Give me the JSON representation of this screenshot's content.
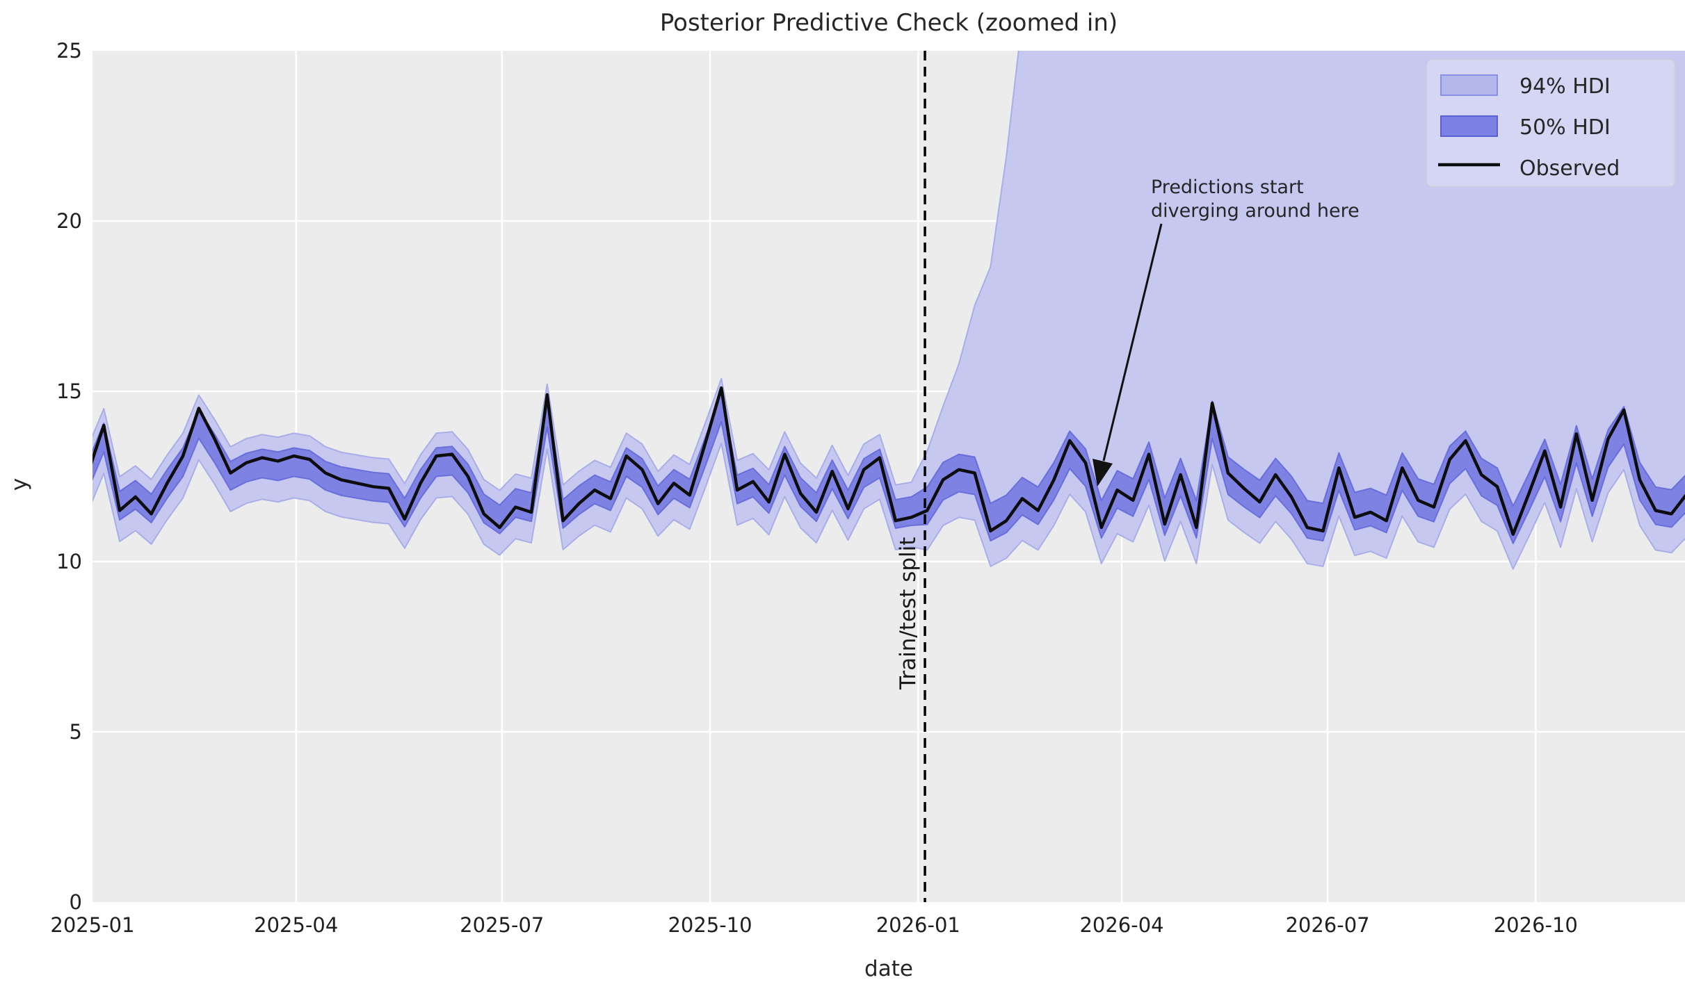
{
  "figure": {
    "title": "Posterior Predictive Check (zoomed in)"
  },
  "legend": {
    "items": [
      {
        "label": "94% HDI",
        "type": "patch-light"
      },
      {
        "label": "50% HDI",
        "type": "patch-dark"
      },
      {
        "label": "Observed",
        "type": "line"
      }
    ]
  },
  "annotation": {
    "line1": "Predictions start",
    "line2": "diverging around here"
  },
  "split_label": "Train/test split",
  "colors": {
    "axes_bg": "#ececec",
    "grid": "#ffffff",
    "hdi94_fill": "#c6c8ef",
    "hdi94_edge": "#a9aee9",
    "hdi50_fill": "#7e83e3",
    "hdi50_edge": "#6066d8",
    "observed": "#0d0d0d",
    "split_line": "#000000",
    "swatch94_fill": "#b3b7eb",
    "swatch94_edge": "#8a90e4",
    "swatch50_fill": "#7b80e2",
    "swatch50_edge": "#5a61d6",
    "legend_frame_fill": "rgba(255,255,255,0.25)",
    "legend_frame_edge": "rgba(210,210,215,0.8)"
  },
  "chart_data": {
    "type": "line",
    "title": "Posterior Predictive Check (zoomed in)",
    "xlabel": "date",
    "ylabel": "y",
    "ylim": [
      0,
      25
    ],
    "y_ticks": [
      0,
      5,
      10,
      15,
      20,
      25
    ],
    "xlim_days": [
      0,
      704
    ],
    "x_ticks": [
      {
        "day": 0,
        "label": "2025-01"
      },
      {
        "day": 90,
        "label": "2025-04"
      },
      {
        "day": 181,
        "label": "2025-07"
      },
      {
        "day": 273,
        "label": "2025-10"
      },
      {
        "day": 365,
        "label": "2026-01"
      },
      {
        "day": 455,
        "label": "2026-04"
      },
      {
        "day": 546,
        "label": "2026-07"
      },
      {
        "day": 638,
        "label": "2026-10"
      }
    ],
    "grid": true,
    "legend_position": "upper right",
    "split_day": 368,
    "split_week_index": 53,
    "observed": {
      "start_day": -2,
      "step_days": 7,
      "values": [
        12.6,
        14.0,
        11.5,
        11.9,
        11.4,
        12.3,
        13.1,
        14.5,
        13.6,
        12.6,
        12.9,
        13.05,
        12.95,
        13.1,
        13.0,
        12.6,
        12.4,
        12.3,
        12.2,
        12.15,
        11.25,
        12.3,
        13.1,
        13.15,
        12.5,
        11.4,
        11.0,
        11.6,
        11.45,
        14.9,
        11.2,
        11.7,
        12.1,
        11.85,
        13.1,
        12.7,
        11.7,
        12.3,
        11.95,
        13.5,
        15.1,
        12.1,
        12.35,
        11.75,
        13.15,
        12.0,
        11.45,
        12.65,
        11.55,
        12.7,
        13.05,
        11.2,
        11.3,
        11.5,
        12.4,
        12.7,
        12.6,
        10.9,
        11.2,
        11.85,
        11.5,
        12.4,
        13.55,
        12.9,
        11.0,
        12.1,
        11.8,
        13.15,
        11.1,
        12.55,
        11.0,
        14.65,
        12.6,
        12.15,
        11.75,
        12.55,
        11.9,
        11.0,
        10.9,
        12.75,
        11.3,
        11.45,
        11.2,
        12.75,
        11.8,
        11.6,
        13.0,
        13.55,
        12.55,
        12.2,
        10.8,
        12.0,
        13.25,
        11.6,
        13.75,
        11.8,
        13.6,
        14.45,
        12.4,
        11.5,
        11.4,
        12.0
      ]
    },
    "hdi_median_blend": {
      "obs_weight": 0.8,
      "base_level": 12.2
    },
    "hdi50": {
      "halfwidth_train": 0.42,
      "halfwidth_test": 0.55
    },
    "hdi94": {
      "upper_offset_train": 0.85,
      "lower_offset_train": 1.05,
      "lower_offset_test": 1.3,
      "test_upper_offsets_from_split": [
        1.6,
        2.2,
        3.2,
        5.0,
        7.5,
        10.5,
        14.0,
        20.0,
        28.0
      ],
      "test_upper_cap": 28.0
    }
  }
}
